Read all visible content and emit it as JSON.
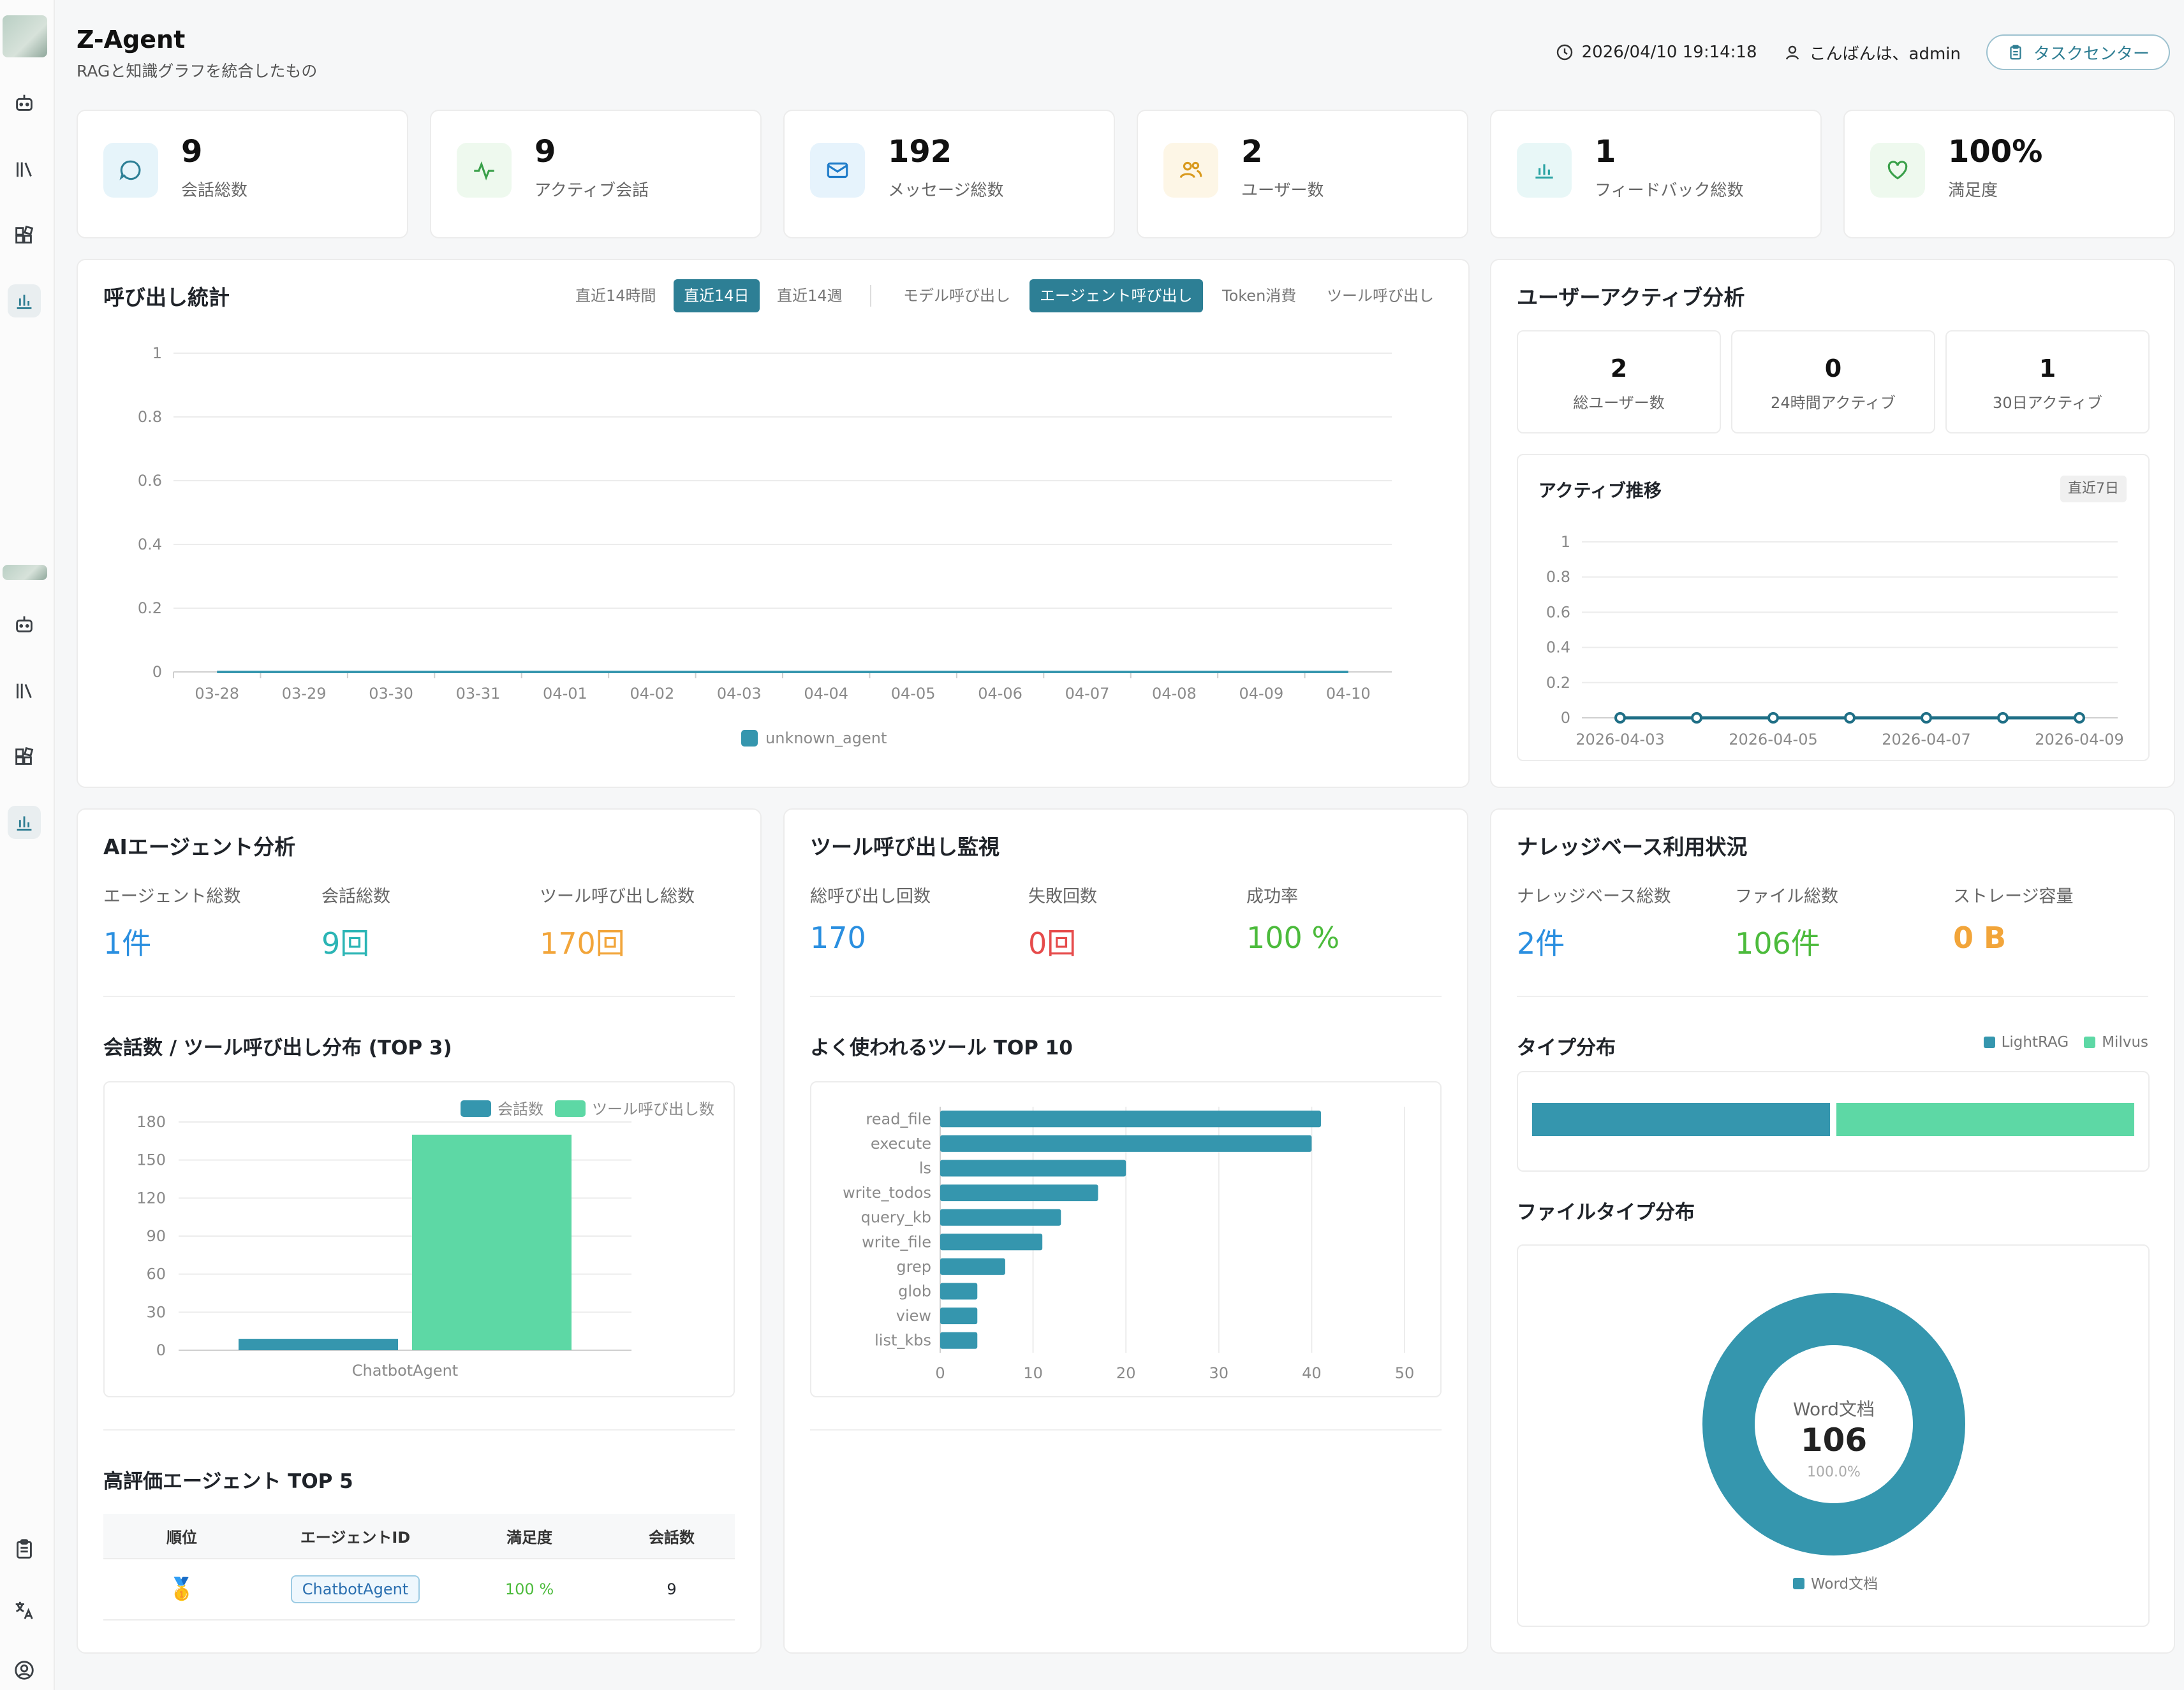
{
  "app": {
    "title": "Z-Agent",
    "subtitle": "RAGと知識グラフを統合したもの"
  },
  "header": {
    "datetime": "2026/04/10 19:14:18",
    "greeting": "こんばんは、admin",
    "task_center": "タスクセンター"
  },
  "sidebar": {
    "icons": [
      "robot-icon",
      "library-icon",
      "blocks-icon",
      "chart-icon",
      "robot-icon",
      "library-icon",
      "blocks-icon",
      "chart-icon",
      "clipboard-icon",
      "translate-icon",
      "user-icon"
    ]
  },
  "stats": [
    {
      "value": "9",
      "label": "会話総数",
      "icon": "chat-icon",
      "bg": "#e6f4fa",
      "fg": "#2d7f95"
    },
    {
      "value": "9",
      "label": "アクティブ会話",
      "icon": "activity-icon",
      "bg": "#eef9ee",
      "fg": "#3aa04a"
    },
    {
      "value": "192",
      "label": "メッセージ総数",
      "icon": "mail-icon",
      "bg": "#e6f3fc",
      "fg": "#1f7cc9"
    },
    {
      "value": "2",
      "label": "ユーザー数",
      "icon": "users-icon",
      "bg": "#fdf6e6",
      "fg": "#d99a1e"
    },
    {
      "value": "1",
      "label": "フィードバック総数",
      "icon": "bar-chart-icon",
      "bg": "#e8f7f7",
      "fg": "#2aa3a3"
    },
    {
      "value": "100%",
      "label": "満足度",
      "icon": "heart-icon",
      "bg": "#eef9ee",
      "fg": "#3aa04a"
    }
  ],
  "calls": {
    "title": "呼び出し統計",
    "range_tabs": [
      "直近14時間",
      "直近14日",
      "直近14週"
    ],
    "range_active": 1,
    "type_tabs": [
      "モデル呼び出し",
      "エージェント呼び出し",
      "Token消費",
      "ツール呼び出し"
    ],
    "type_active": 1
  },
  "user_activity": {
    "title": "ユーザーアクティブ分析",
    "cards": [
      {
        "value": "2",
        "label": "総ユーザー数"
      },
      {
        "value": "0",
        "label": "24時間アクティブ"
      },
      {
        "value": "1",
        "label": "30日アクティブ"
      }
    ],
    "trend_title": "アクティブ推移",
    "trend_tag": "直近7日"
  },
  "agent_analysis": {
    "title": "AIエージェント分析",
    "metrics": [
      {
        "label": "エージェント総数",
        "value": "1件",
        "color": "#2a8fe0"
      },
      {
        "label": "会話総数",
        "value": "9回",
        "color": "#2bb5b5"
      },
      {
        "label": "ツール呼び出し総数",
        "value": "170回",
        "color": "#f2a53a"
      }
    ],
    "dist_title": "会話数 / ツール呼び出し分布 (TOP 3)",
    "top_title": "高評価エージェント TOP 5",
    "table": {
      "headers": [
        "順位",
        "エージェントID",
        "満足度",
        "会話数"
      ],
      "rows": [
        {
          "rank": "🥇",
          "agent": "ChatbotAgent",
          "satisfaction": "100 %",
          "conversations": "9"
        }
      ]
    }
  },
  "tool_monitor": {
    "title": "ツール呼び出し監視",
    "metrics": [
      {
        "label": "総呼び出し回数",
        "value": "170",
        "color": "#2a8fe0"
      },
      {
        "label": "失敗回数",
        "value": "0回",
        "color": "#e64b4b"
      },
      {
        "label": "成功率",
        "value": "100 %",
        "color": "#4cbb3c"
      }
    ],
    "top_title": "よく使われるツール TOP 10"
  },
  "kb": {
    "title": "ナレッジベース利用状況",
    "metrics": [
      {
        "label": "ナレッジベース総数",
        "value": "2件",
        "color": "#2a8fe0"
      },
      {
        "label": "ファイル総数",
        "value": "106件",
        "color": "#4cbb3c"
      },
      {
        "label": "ストレージ容量",
        "value": "0 B",
        "color": "#f2a53a"
      }
    ],
    "type_title": "タイプ分布",
    "type_legend": [
      {
        "name": "LightRAG",
        "color": "#3596ae"
      },
      {
        "name": "Milvus",
        "color": "#5dd8a5"
      }
    ],
    "filetype_title": "ファイルタイプ分布",
    "donut": {
      "center_label": "Word文档",
      "center_value": "106",
      "center_pct": "100.0%",
      "legend": "Word文档"
    }
  },
  "chart_data": [
    {
      "type": "line",
      "id": "calls",
      "categories": [
        "03-28",
        "03-29",
        "03-30",
        "03-31",
        "04-01",
        "04-02",
        "04-03",
        "04-04",
        "04-05",
        "04-06",
        "04-07",
        "04-08",
        "04-09",
        "04-10"
      ],
      "series": [
        {
          "name": "unknown_agent",
          "values": [
            0,
            0,
            0,
            0,
            0,
            0,
            0,
            0,
            0,
            0,
            0,
            0,
            0,
            0
          ]
        }
      ],
      "yticks": [
        "0",
        "0.2",
        "0.4",
        "0.6",
        "0.8",
        "1"
      ],
      "ylim": [
        0,
        1
      ],
      "legend": "bottom",
      "color": "#3596ae"
    },
    {
      "type": "line",
      "id": "active_trend",
      "x": [
        "2026-04-03",
        "2026-04-04",
        "2026-04-05",
        "2026-04-06",
        "2026-04-07",
        "2026-04-08",
        "2026-04-09"
      ],
      "xticks": [
        "2026-04-03",
        "2026-04-05",
        "2026-04-07",
        "2026-04-09"
      ],
      "values": [
        0,
        0,
        0,
        0,
        0,
        0,
        0
      ],
      "yticks": [
        "0",
        "0.2",
        "0.4",
        "0.6",
        "0.8",
        "1"
      ],
      "ylim": [
        0,
        1
      ],
      "color": "#1f6f86"
    },
    {
      "type": "bar",
      "id": "agent_dist",
      "categories": [
        "ChatbotAgent"
      ],
      "series": [
        {
          "name": "会話数",
          "values": [
            9
          ],
          "color": "#3596ae"
        },
        {
          "name": "ツール呼び出し数",
          "values": [
            170
          ],
          "color": "#5dd8a5"
        }
      ],
      "yticks": [
        "0",
        "30",
        "60",
        "90",
        "120",
        "150",
        "180"
      ],
      "ylim": [
        0,
        180
      ],
      "legend": "top-right"
    },
    {
      "type": "bar",
      "id": "top_tools",
      "orientation": "horizontal",
      "categories": [
        "read_file",
        "execute",
        "ls",
        "write_todos",
        "query_kb",
        "write_file",
        "grep",
        "glob",
        "view",
        "list_kbs"
      ],
      "values": [
        41,
        40,
        20,
        17,
        13,
        11,
        7,
        4,
        4,
        4
      ],
      "xticks": [
        "0",
        "10",
        "20",
        "30",
        "40",
        "50"
      ],
      "xlim": [
        0,
        50
      ],
      "color": "#3596ae"
    },
    {
      "type": "bar",
      "id": "kb_types",
      "orientation": "stacked-horizontal",
      "series": [
        {
          "name": "LightRAG",
          "value": 1,
          "color": "#3596ae"
        },
        {
          "name": "Milvus",
          "value": 1,
          "color": "#5dd8a5"
        }
      ]
    },
    {
      "type": "pie",
      "id": "file_types",
      "slices": [
        {
          "name": "Word文档",
          "value": 106,
          "percent": 100.0,
          "color": "#3596ae"
        }
      ]
    }
  ]
}
